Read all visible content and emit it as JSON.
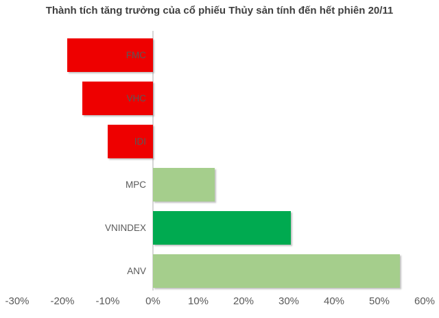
{
  "chart_data": {
    "type": "bar",
    "orientation": "horizontal",
    "title": "Thành tích tăng trưởng của cổ phiếu Thủy sản tính đến hết phiên 20/11",
    "categories": [
      "FMC",
      "VHC",
      "IDI",
      "MPC",
      "VNINDEX",
      "ANV"
    ],
    "values": [
      -18.9,
      -15.6,
      -10.0,
      13.6,
      30.5,
      54.5
    ],
    "value_unit": "%",
    "bar_colors": [
      "#EE0000",
      "#EE0000",
      "#EE0000",
      "#A5CE8C",
      "#00AA50",
      "#A5CE8C"
    ],
    "xlabel": "",
    "ylabel": "",
    "xlim": [
      -30,
      60
    ],
    "x_ticks": [
      -30,
      -20,
      -10,
      0,
      10,
      20,
      30,
      40,
      50,
      60
    ],
    "x_tick_labels": [
      "-30%",
      "-20%",
      "-10%",
      "0%",
      "10%",
      "20%",
      "30%",
      "40%",
      "50%",
      "60%"
    ],
    "grid": false,
    "legend": false
  },
  "colors": {
    "negative_bar": "#EE0000",
    "positive_bar_light": "#A5CE8C",
    "positive_bar_dark": "#00AA50",
    "label_text": "#595959",
    "title_text": "#3F3F3F",
    "zero_axis_line": "#D6D6D6",
    "background": "#FFFFFF"
  }
}
